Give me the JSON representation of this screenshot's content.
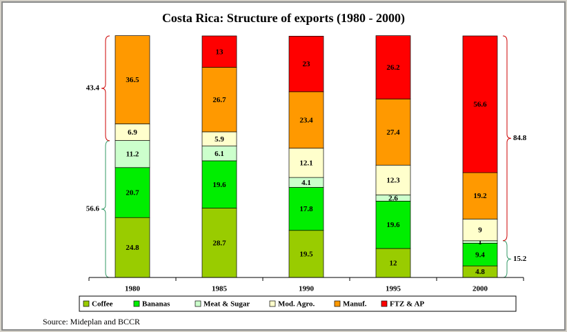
{
  "chart_data": {
    "type": "stacked_bar",
    "title": "Costa Rica: Structure of exports (1980 - 2000)",
    "categories": [
      "1980",
      "1985",
      "1990",
      "1995",
      "2000"
    ],
    "series": [
      {
        "name": "Coffee",
        "color": "#99cc00",
        "values": [
          24.8,
          28.7,
          19.5,
          12,
          4.8
        ]
      },
      {
        "name": "Bananas",
        "color": "#00ee00",
        "values": [
          20.7,
          19.6,
          17.8,
          19.6,
          9.4
        ]
      },
      {
        "name": "Meat & Sugar",
        "color": "#ccffcc",
        "values": [
          11.2,
          6.1,
          4.1,
          2.6,
          1
        ]
      },
      {
        "name": "Mod. Agro.",
        "color": "#ffffcc",
        "values": [
          6.9,
          5.9,
          12.1,
          12.3,
          9
        ]
      },
      {
        "name": "Manuf.",
        "color": "#ff9900",
        "values": [
          36.5,
          26.7,
          23.4,
          27.4,
          19.2
        ]
      },
      {
        "name": "FTZ & AP",
        "color": "#ff0000",
        "values": [
          null,
          13,
          23,
          26.2,
          56.6
        ]
      }
    ],
    "ylim": [
      0,
      100
    ],
    "brackets": {
      "1980": [
        56.6,
        43.4
      ],
      "2000": [
        15.2,
        84.8
      ]
    },
    "source": "Source: Mideplan and BCCR"
  }
}
